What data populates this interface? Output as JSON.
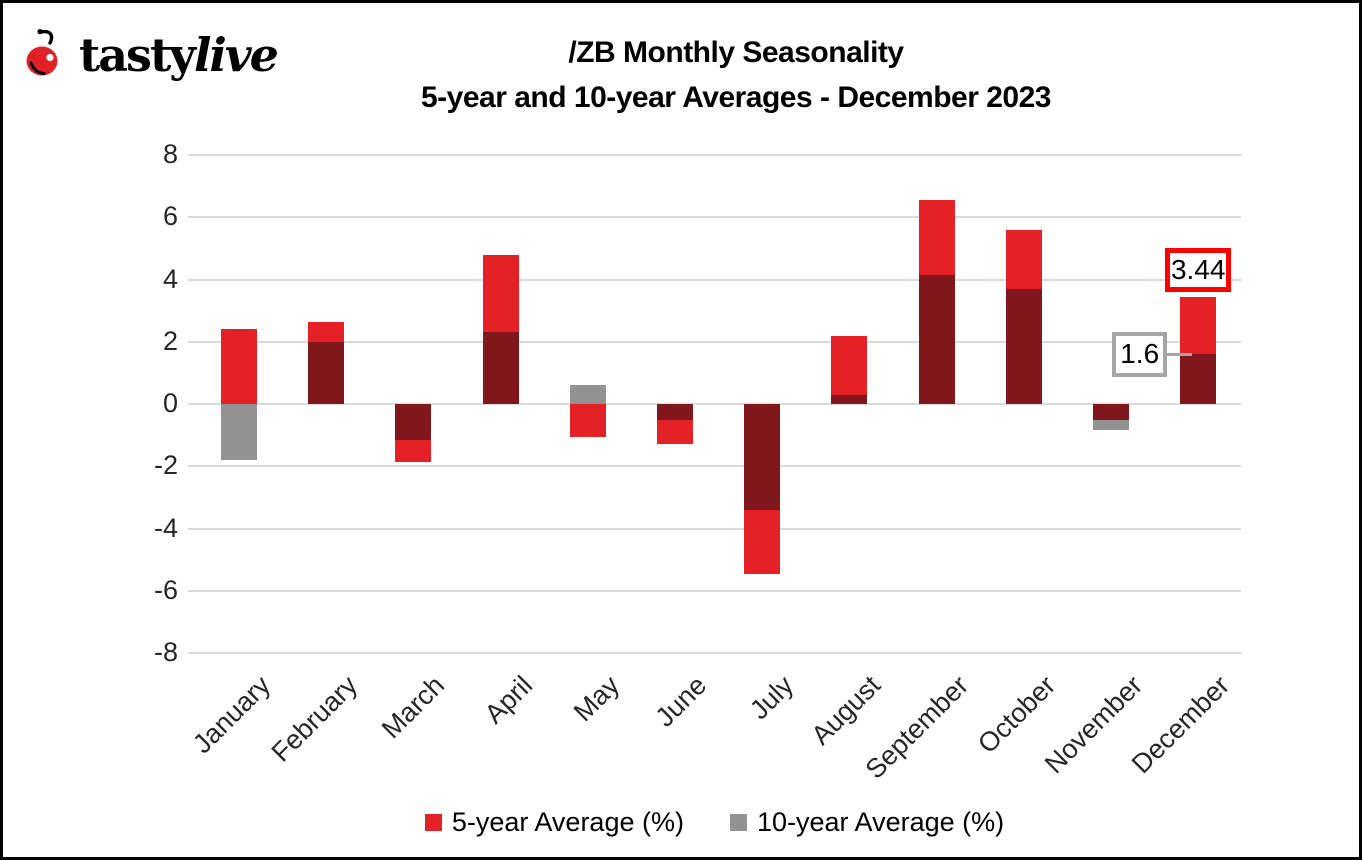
{
  "header": {
    "brand_first": "tasty",
    "brand_second": "live",
    "title_line1": "/ZB Monthly Seasonality",
    "title_line2": "5-year and 10-year Averages - December 2023"
  },
  "chart_data": {
    "type": "bar",
    "title": "/ZB Monthly Seasonality",
    "subtitle": "5-year and 10-year Averages - December 2023",
    "categories": [
      "January",
      "February",
      "March",
      "April",
      "May",
      "June",
      "July",
      "August",
      "September",
      "October",
      "November",
      "December"
    ],
    "series": [
      {
        "name": "5-year Average (%)",
        "color": "#e32126",
        "values": [
          2.4,
          2.65,
          -1.85,
          4.8,
          -1.05,
          -1.3,
          -5.45,
          2.2,
          6.55,
          5.6,
          -0.5,
          3.44
        ]
      },
      {
        "name": "10-year Average (%)",
        "color": "#929292",
        "values": [
          -1.8,
          2.0,
          -1.15,
          2.3,
          0.6,
          -0.5,
          -3.4,
          0.3,
          4.15,
          3.7,
          -0.85,
          1.6
        ]
      }
    ],
    "overlap_color": "#7f171c",
    "ylim": [
      -8,
      8
    ],
    "ytick_step": 2,
    "ytick_labels": [
      "8",
      "6",
      "4",
      "2",
      "0",
      "-2",
      "-4",
      "-6",
      "-8"
    ],
    "grid": true,
    "legend_position": "bottom",
    "annotations": [
      {
        "text": "3.44",
        "style": "red-box",
        "month_index": 11,
        "value": 3.44
      },
      {
        "text": "1.6",
        "style": "gray-box",
        "month_index": 11,
        "value": 1.6
      }
    ]
  },
  "colors": {
    "five_year": "#e32126",
    "ten_year": "#929292",
    "overlap": "#7f171c",
    "gridline": "#d9d9d9",
    "annotation_red_border": "#fe0000",
    "annotation_gray_border": "#a6a6a6",
    "frame_border": "#000000",
    "cherry_red": "#e02227"
  }
}
